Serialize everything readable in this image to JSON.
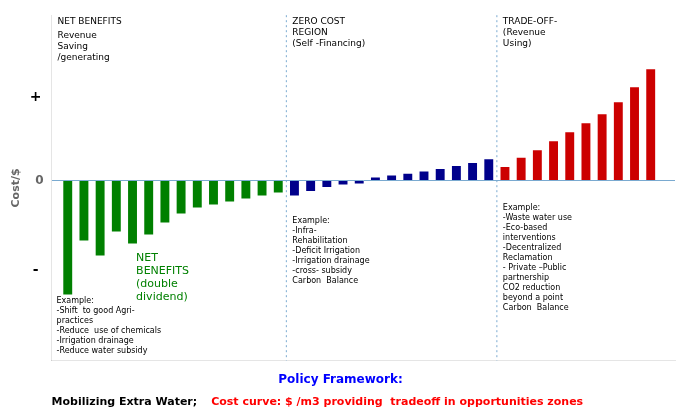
{
  "chart_data": {
    "type": "bar",
    "title": "Policy Framework:",
    "title_color": "blue",
    "y_label": "Cost/$",
    "x": [
      1,
      2,
      3,
      4,
      5,
      6,
      7,
      8,
      9,
      10,
      11,
      12,
      13,
      14,
      15,
      16,
      17,
      18,
      19,
      20,
      21,
      22,
      23,
      24,
      25,
      26,
      27,
      28,
      29,
      30,
      31,
      32,
      33,
      34,
      35,
      36,
      37
    ],
    "values": [
      -0.38,
      -0.2,
      -0.25,
      -0.17,
      -0.21,
      -0.18,
      -0.14,
      -0.11,
      -0.09,
      -0.08,
      -0.07,
      -0.06,
      -0.05,
      -0.04,
      -0.05,
      -0.035,
      -0.022,
      -0.014,
      -0.01,
      0.01,
      0.016,
      0.022,
      0.03,
      0.038,
      0.048,
      0.058,
      0.07,
      0.045,
      0.075,
      0.1,
      0.13,
      0.16,
      0.19,
      0.22,
      0.26,
      0.31,
      0.37
    ],
    "colors": [
      "#008000",
      "#008000",
      "#008000",
      "#008000",
      "#008000",
      "#008000",
      "#008000",
      "#008000",
      "#008000",
      "#008000",
      "#008000",
      "#008000",
      "#008000",
      "#008000",
      "#00008B",
      "#00008B",
      "#00008B",
      "#00008B",
      "#00008B",
      "#00008B",
      "#00008B",
      "#00008B",
      "#00008B",
      "#00008B",
      "#00008B",
      "#00008B",
      "#00008B",
      "#CC0000",
      "#CC0000",
      "#CC0000",
      "#CC0000",
      "#CC0000",
      "#CC0000",
      "#CC0000",
      "#CC0000",
      "#CC0000",
      "#CC0000"
    ],
    "xlim": [
      0,
      38.5
    ],
    "ylim": [
      -0.6,
      0.55
    ],
    "yticks": [
      0
    ],
    "grid": true,
    "tick_labels": "y",
    "dividers": [
      14.5,
      27.5
    ],
    "divider_color": "#7aaad0",
    "y_signs": {
      "above": "+",
      "below": "-"
    },
    "phases": [
      {
        "header": "NET BENEFITS",
        "subheader": "Revenue\nSaving\n/generating",
        "note": {
          "text": "NET\nBENEFITS\n(double\ndividend)",
          "color": "#008000"
        },
        "example": "Example:\n-Shift  to good Agri-\npractices\n-Reduce  use of chemicals\n-Irrigation drainage\n-Reduce water subsidy"
      },
      {
        "header": "ZERO COST\nREGION\n(Self -Financing)",
        "example": "Example:\n-Infra-\nRehabilitation\n-Deficit Irrigation\n-Irrigation drainage\n-cross- subsidy\nCarbon  Balance"
      },
      {
        "header": "TRADE-OFF-\n(Revenue\nUsing)",
        "example": "Example:\n-Waste water use\n-Eco-based\ninterventions\n-Decentralized\nReclamation\n- Private –Public\npartnership\nCO2 reduction\nbeyond a point\nCarbon  Balance"
      }
    ],
    "footer": [
      {
        "text": "Mobilizing Extra Water;",
        "color": "black"
      },
      {
        "text": "Cost curve: $ /m3 providing  tradeoff in opportunities zones",
        "color": "red"
      }
    ]
  }
}
